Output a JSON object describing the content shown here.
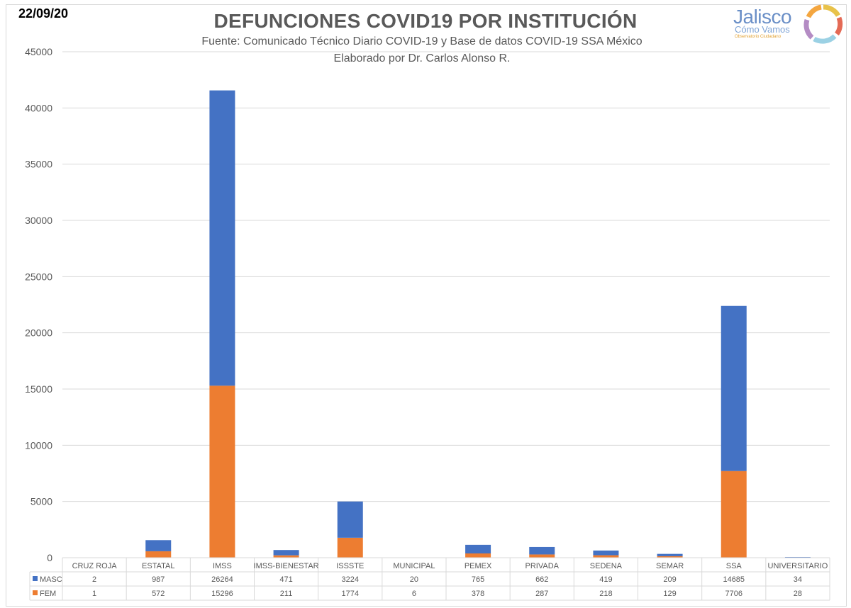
{
  "date": "22/09/20",
  "title": "DEFUNCIONES COVID19 POR INSTITUCIÓN",
  "subtitle1": "Fuente: Comunicado Técnico Diario COVID-19 y Base de datos COVID-19 SSA México",
  "subtitle2": "Elaborado por Dr. Carlos Alonso R.",
  "logo": {
    "name": "Jalisco",
    "line2": "Cómo Vamos",
    "line3": "Observatorio Ciudadano"
  },
  "colors": {
    "masc": "#4472c4",
    "fem": "#ed7d31",
    "grid": "#d9d9d9",
    "text": "#595959"
  },
  "chart_data": {
    "type": "bar",
    "stacked": true,
    "categories": [
      "CRUZ ROJA",
      "ESTATAL",
      "IMSS",
      "IMSS-BIENESTAR",
      "ISSSTE",
      "MUNICIPAL",
      "PEMEX",
      "PRIVADA",
      "SEDENA",
      "SEMAR",
      "SSA",
      "UNIVERSITARIO"
    ],
    "series": [
      {
        "name": "FEM",
        "values": [
          1,
          572,
          15296,
          211,
          1774,
          6,
          378,
          287,
          218,
          129,
          7706,
          28
        ]
      },
      {
        "name": "MASC",
        "values": [
          2,
          987,
          26264,
          471,
          3224,
          20,
          765,
          662,
          419,
          209,
          14685,
          34
        ]
      }
    ],
    "table_rows": [
      "MASC",
      "FEM"
    ],
    "yticks": [
      0,
      5000,
      10000,
      15000,
      20000,
      25000,
      30000,
      35000,
      40000,
      45000
    ],
    "ylim": [
      0,
      45000
    ],
    "grid": true,
    "legend": "data-table"
  }
}
